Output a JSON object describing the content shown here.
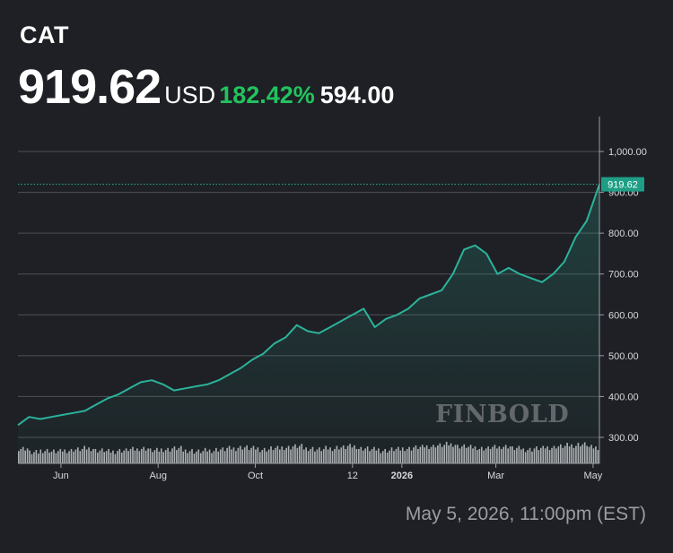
{
  "header": {
    "ticker": "CAT",
    "price": "919.62",
    "currency": "USD",
    "change_pct": "182.42%",
    "change_abs": "594.00"
  },
  "footer": {
    "timestamp": "May 5, 2026, 11:00pm (EST)"
  },
  "logo": {
    "text": "FINBOLD"
  },
  "colors": {
    "background": "#1e2025",
    "line": "#2bb39a",
    "positive": "#22c35e",
    "grid": "#5a5d63",
    "volume": "#c9cacc",
    "price_badge": "#1f9e86"
  },
  "chart_data": {
    "type": "area",
    "title": "",
    "xlabel": "",
    "ylabel": "",
    "ylim": [
      290,
      1070
    ],
    "y_ticks": [
      300,
      400,
      500,
      600,
      700,
      800,
      900,
      1000
    ],
    "y_tick_labels": [
      "300.00",
      "400.00",
      "500.00",
      "600.00",
      "700.00",
      "800.00",
      "900.00",
      "1,000.00"
    ],
    "x_ticks": [
      {
        "label": "Jun",
        "date": "2025-06-01"
      },
      {
        "label": "Aug",
        "date": "2025-08-01"
      },
      {
        "label": "Oct",
        "date": "2025-10-01"
      },
      {
        "label": "12",
        "date": "2025-12-01"
      },
      {
        "label": "2026",
        "date": "2026-01-01",
        "bold": true
      },
      {
        "label": "Mar",
        "date": "2026-03-01"
      },
      {
        "label": "May",
        "date": "2026-05-01"
      }
    ],
    "xlim": [
      "2025-05-05",
      "2026-05-05"
    ],
    "last_price_label": "919.62",
    "last_price": 919.62,
    "series": [
      {
        "x": [
          "2025-05-05",
          "2025-05-12",
          "2025-05-19",
          "2025-05-26",
          "2025-06-02",
          "2025-06-09",
          "2025-06-16",
          "2025-06-23",
          "2025-06-30",
          "2025-07-07",
          "2025-07-14",
          "2025-07-21",
          "2025-07-28",
          "2025-08-04",
          "2025-08-11",
          "2025-08-18",
          "2025-08-25",
          "2025-09-01",
          "2025-09-08",
          "2025-09-15",
          "2025-09-22",
          "2025-09-29",
          "2025-10-06",
          "2025-10-13",
          "2025-10-20",
          "2025-10-27",
          "2025-11-03",
          "2025-11-10",
          "2025-11-17",
          "2025-11-24",
          "2025-12-01",
          "2025-12-08",
          "2025-12-15",
          "2025-12-22",
          "2025-12-29",
          "2026-01-05",
          "2026-01-12",
          "2026-01-19",
          "2026-01-26",
          "2026-02-02",
          "2026-02-09",
          "2026-02-16",
          "2026-02-23",
          "2026-03-02",
          "2026-03-09",
          "2026-03-16",
          "2026-03-23",
          "2026-03-30",
          "2026-04-06",
          "2026-04-13",
          "2026-04-20",
          "2026-04-27",
          "2026-05-05"
        ],
        "y": [
          330,
          350,
          345,
          350,
          355,
          360,
          365,
          380,
          395,
          405,
          420,
          435,
          440,
          430,
          415,
          420,
          425,
          430,
          440,
          455,
          470,
          490,
          505,
          530,
          545,
          575,
          560,
          555,
          570,
          585,
          600,
          615,
          570,
          590,
          600,
          615,
          640,
          650,
          660,
          700,
          760,
          770,
          750,
          700,
          715,
          700,
          690,
          680,
          700,
          730,
          790,
          830,
          919.62
        ]
      }
    ],
    "volume": {
      "note": "relative volume bars",
      "values": [
        0.6,
        0.4,
        0.5,
        0.45,
        0.5,
        0.55,
        0.6,
        0.5,
        0.45,
        0.5,
        0.55,
        0.6,
        0.5,
        0.55,
        0.6,
        0.5,
        0.45,
        0.5,
        0.55,
        0.6,
        0.65,
        0.6,
        0.55,
        0.6,
        0.65,
        0.7,
        0.6,
        0.55,
        0.6,
        0.65,
        0.7,
        0.6,
        0.55,
        0.5,
        0.55,
        0.6,
        0.65,
        0.7,
        0.75,
        0.8,
        0.7,
        0.65,
        0.6,
        0.65,
        0.7,
        0.6,
        0.55,
        0.6,
        0.65,
        0.7,
        0.75,
        0.8,
        0.65
      ]
    }
  }
}
